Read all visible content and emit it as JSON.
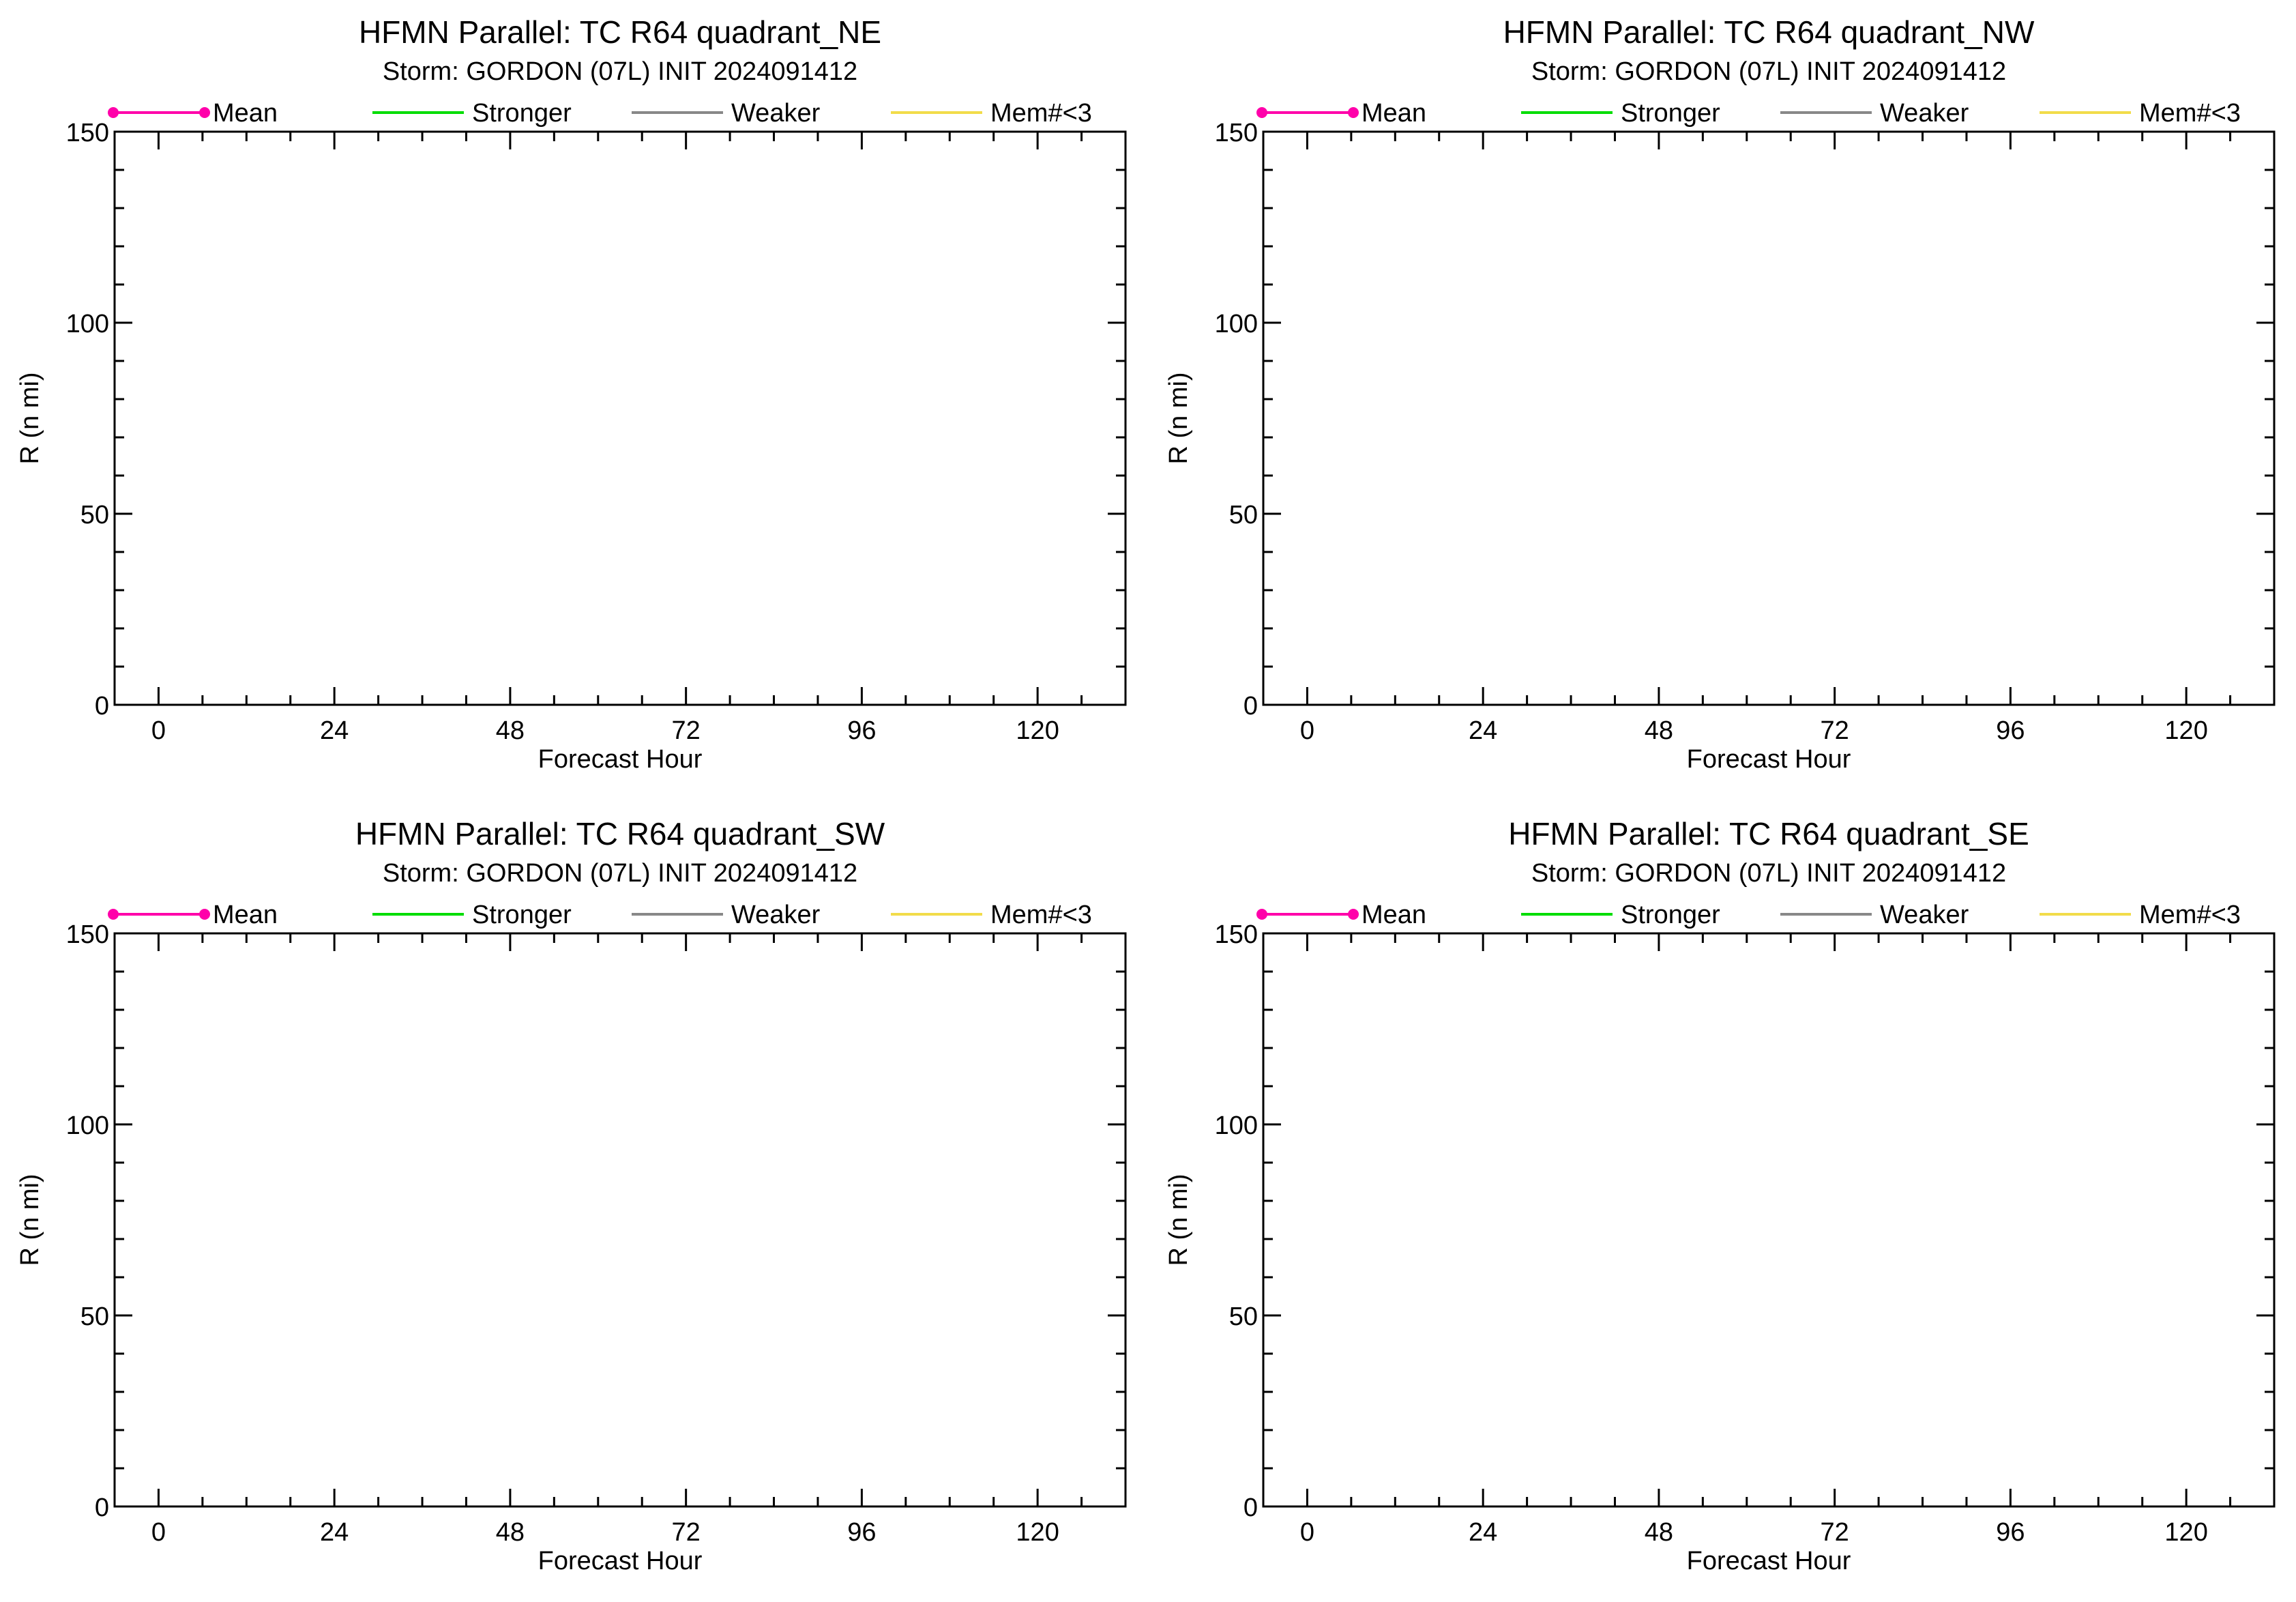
{
  "legend": [
    {
      "label": "Mean",
      "color": "#ff00aa",
      "marker": true
    },
    {
      "label": "Stronger",
      "color": "#00dd00",
      "marker": false
    },
    {
      "label": "Weaker",
      "color": "#888888",
      "marker": false
    },
    {
      "label": "Mem#<3",
      "color": "#f2dc4a",
      "marker": false
    }
  ],
  "chart_data": [
    {
      "type": "line",
      "title": "HFMN Parallel: TC  R64 quadrant_NE",
      "subtitle": "Storm: GORDON (07L) INIT 2024091412",
      "xlabel": "Forecast Hour",
      "ylabel": "R (n mi)",
      "xlim": [
        -6,
        132
      ],
      "ylim": [
        0,
        150
      ],
      "xticks": [
        0,
        24,
        48,
        72,
        96,
        120
      ],
      "yticks": [
        0,
        50,
        100,
        150
      ],
      "grid": false,
      "legend_position": "top",
      "series": [
        {
          "name": "Mean",
          "x": [],
          "y": []
        },
        {
          "name": "Stronger",
          "x": [],
          "y": []
        },
        {
          "name": "Weaker",
          "x": [],
          "y": []
        },
        {
          "name": "Mem#<3",
          "x": [],
          "y": []
        }
      ]
    },
    {
      "type": "line",
      "title": "HFMN Parallel: TC  R64 quadrant_NW",
      "subtitle": "Storm: GORDON (07L) INIT 2024091412",
      "xlabel": "Forecast Hour",
      "ylabel": "R (n mi)",
      "xlim": [
        -6,
        132
      ],
      "ylim": [
        0,
        150
      ],
      "xticks": [
        0,
        24,
        48,
        72,
        96,
        120
      ],
      "yticks": [
        0,
        50,
        100,
        150
      ],
      "grid": false,
      "legend_position": "top",
      "series": [
        {
          "name": "Mean",
          "x": [],
          "y": []
        },
        {
          "name": "Stronger",
          "x": [],
          "y": []
        },
        {
          "name": "Weaker",
          "x": [],
          "y": []
        },
        {
          "name": "Mem#<3",
          "x": [],
          "y": []
        }
      ]
    },
    {
      "type": "line",
      "title": "HFMN Parallel: TC  R64 quadrant_SW",
      "subtitle": "Storm: GORDON (07L) INIT 2024091412",
      "xlabel": "Forecast Hour",
      "ylabel": "R (n mi)",
      "xlim": [
        -6,
        132
      ],
      "ylim": [
        0,
        150
      ],
      "xticks": [
        0,
        24,
        48,
        72,
        96,
        120
      ],
      "yticks": [
        0,
        50,
        100,
        150
      ],
      "grid": false,
      "legend_position": "top",
      "series": [
        {
          "name": "Mean",
          "x": [],
          "y": []
        },
        {
          "name": "Stronger",
          "x": [],
          "y": []
        },
        {
          "name": "Weaker",
          "x": [],
          "y": []
        },
        {
          "name": "Mem#<3",
          "x": [],
          "y": []
        }
      ]
    },
    {
      "type": "line",
      "title": "HFMN Parallel: TC  R64 quadrant_SE",
      "subtitle": "Storm: GORDON (07L) INIT 2024091412",
      "xlabel": "Forecast Hour",
      "ylabel": "R (n mi)",
      "xlim": [
        -6,
        132
      ],
      "ylim": [
        0,
        150
      ],
      "xticks": [
        0,
        24,
        48,
        72,
        96,
        120
      ],
      "yticks": [
        0,
        50,
        100,
        150
      ],
      "grid": false,
      "legend_position": "top",
      "series": [
        {
          "name": "Mean",
          "x": [],
          "y": []
        },
        {
          "name": "Stronger",
          "x": [],
          "y": []
        },
        {
          "name": "Weaker",
          "x": [],
          "y": []
        },
        {
          "name": "Mem#<3",
          "x": [],
          "y": []
        }
      ]
    }
  ]
}
